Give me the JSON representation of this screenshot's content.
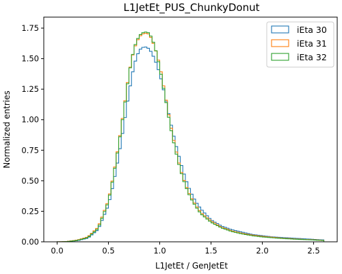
{
  "chart_data": {
    "type": "line",
    "subtype": "step-histogram",
    "title": "L1JetEt_PUS_ChunkyDonut",
    "xlabel": "L1JetEt / GenJetEt",
    "ylabel": "Normalized entries",
    "xlim": [
      -0.13,
      2.73
    ],
    "ylim": [
      0,
      1.84
    ],
    "x_ticks": [
      0.0,
      0.5,
      1.0,
      1.5,
      2.0,
      2.5
    ],
    "x_tick_labels": [
      "0.0",
      "0.5",
      "1.0",
      "1.5",
      "2.0",
      "2.5"
    ],
    "y_ticks": [
      0.0,
      0.25,
      0.5,
      0.75,
      1.0,
      1.25,
      1.5,
      1.75
    ],
    "y_tick_labels": [
      "0.00",
      "0.25",
      "0.50",
      "0.75",
      "1.00",
      "1.25",
      "1.50",
      "1.75"
    ],
    "grid": false,
    "legend_position": "top-right",
    "x": [
      0.0,
      0.1,
      0.2,
      0.3,
      0.4,
      0.5,
      0.55,
      0.6,
      0.65,
      0.7,
      0.75,
      0.8,
      0.85,
      0.9,
      0.95,
      1.0,
      1.05,
      1.1,
      1.15,
      1.2,
      1.25,
      1.3,
      1.35,
      1.4,
      1.5,
      1.6,
      1.7,
      1.8,
      1.9,
      2.0,
      2.1,
      2.2,
      2.3,
      2.4,
      2.5,
      2.6
    ],
    "series": [
      {
        "name": "iEta 30",
        "color": "#1f77b4",
        "values": [
          0.0,
          0.002,
          0.01,
          0.03,
          0.1,
          0.3,
          0.48,
          0.7,
          0.95,
          1.22,
          1.45,
          1.57,
          1.6,
          1.58,
          1.5,
          1.38,
          1.2,
          1.0,
          0.82,
          0.66,
          0.52,
          0.41,
          0.33,
          0.27,
          0.18,
          0.13,
          0.1,
          0.08,
          0.06,
          0.05,
          0.04,
          0.035,
          0.03,
          0.025,
          0.02,
          0.015
        ]
      },
      {
        "name": "iEta 31",
        "color": "#ff7f0e",
        "values": [
          0.0,
          0.003,
          0.015,
          0.04,
          0.12,
          0.34,
          0.55,
          0.8,
          1.08,
          1.38,
          1.58,
          1.68,
          1.71,
          1.7,
          1.6,
          1.45,
          1.22,
          0.98,
          0.78,
          0.6,
          0.47,
          0.37,
          0.3,
          0.24,
          0.17,
          0.12,
          0.09,
          0.07,
          0.055,
          0.045,
          0.037,
          0.03,
          0.025,
          0.02,
          0.017,
          0.012
        ]
      },
      {
        "name": "iEta 32",
        "color": "#2ca02c",
        "values": [
          0.0,
          0.002,
          0.012,
          0.035,
          0.11,
          0.33,
          0.54,
          0.79,
          1.07,
          1.37,
          1.59,
          1.69,
          1.72,
          1.71,
          1.61,
          1.43,
          1.2,
          0.96,
          0.76,
          0.59,
          0.46,
          0.36,
          0.29,
          0.23,
          0.16,
          0.115,
          0.085,
          0.065,
          0.05,
          0.04,
          0.033,
          0.027,
          0.022,
          0.018,
          0.015,
          0.01
        ]
      }
    ]
  }
}
